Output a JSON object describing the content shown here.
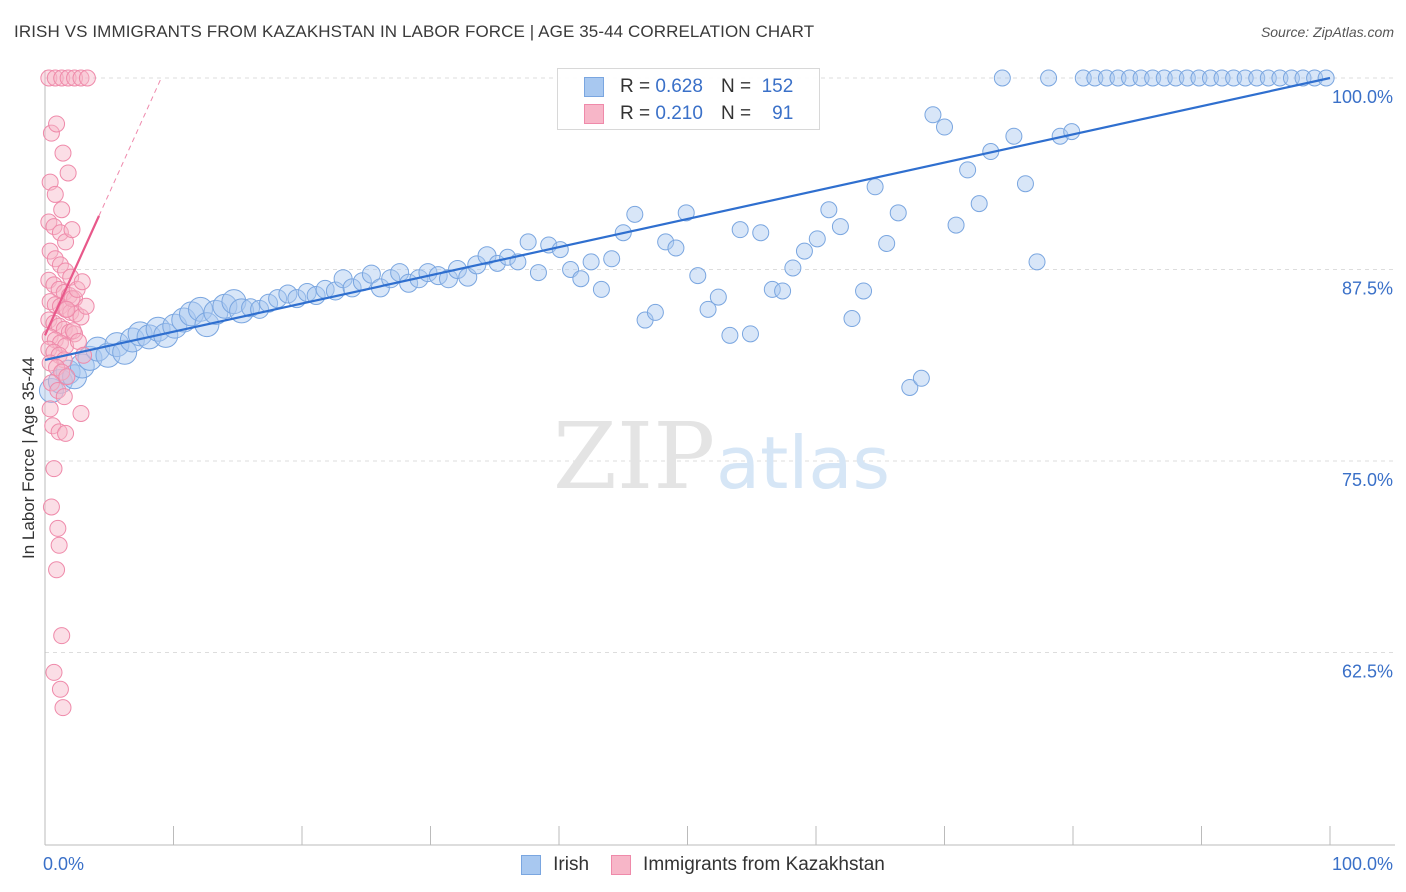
{
  "title": "IRISH VS IMMIGRANTS FROM KAZAKHSTAN IN LABOR FORCE | AGE 35-44 CORRELATION CHART",
  "source": "Source: ZipAtlas.com",
  "watermark": {
    "zip": "ZIP",
    "atlas": "atlas"
  },
  "legend": {
    "irish": {
      "r_label": "R =",
      "r_value": "0.628",
      "n_label": "N =",
      "n_value": "152"
    },
    "kazakhstan": {
      "r_label": "R =",
      "r_value": "0.210",
      "n_label": "N =",
      "n_value": "91"
    }
  },
  "colors": {
    "irish_fill": "#a8c8f0",
    "irish_stroke": "#7aa6e0",
    "irish_line": "#2f6fcf",
    "kaz_fill": "#f7b6c8",
    "kaz_stroke": "#ef8aaa",
    "kaz_line": "#e8588a",
    "axis_label": "#3a70c8",
    "grid": "#dddddd"
  },
  "chart_data": {
    "type": "scatter",
    "title": "IRISH VS IMMIGRANTS FROM KAZAKHSTAN IN LABOR FORCE | AGE 35-44 CORRELATION CHART",
    "xlabel": "",
    "ylabel": "In Labor Force | Age 35-44",
    "xlim": [
      0,
      100
    ],
    "ylim": [
      50,
      101
    ],
    "x_tick_labels": [
      "0.0%",
      "100.0%"
    ],
    "y_ticks": [
      62.5,
      75.0,
      87.5,
      100.0
    ],
    "y_tick_labels": [
      "62.5%",
      "75.0%",
      "87.5%",
      "100.0%"
    ],
    "grid": true,
    "legend": [
      "Irish",
      "Immigrants from Kazakhstan"
    ],
    "series": [
      {
        "name": "Irish",
        "trend": {
          "x0": 0,
          "y0": 81.6,
          "x1": 100,
          "y1": 100.0
        },
        "points": [
          [
            0.5,
            79.6
          ],
          [
            1.2,
            80.2
          ],
          [
            1.8,
            80.8
          ],
          [
            2.3,
            80.5
          ],
          [
            2.9,
            81.2
          ],
          [
            3.5,
            81.7
          ],
          [
            4.1,
            82.3
          ],
          [
            4.9,
            81.9
          ],
          [
            5.6,
            82.6
          ],
          [
            6.2,
            82.1
          ],
          [
            6.8,
            82.9
          ],
          [
            7.4,
            83.3
          ],
          [
            8.1,
            83.1
          ],
          [
            8.8,
            83.6
          ],
          [
            9.4,
            83.2
          ],
          [
            10.1,
            83.8
          ],
          [
            10.8,
            84.2
          ],
          [
            11.4,
            84.6
          ],
          [
            12.1,
            84.9
          ],
          [
            12.6,
            83.9
          ],
          [
            13.3,
            84.7
          ],
          [
            14.0,
            85.1
          ],
          [
            14.7,
            85.4
          ],
          [
            15.3,
            84.8
          ],
          [
            16.0,
            85.0
          ],
          [
            16.7,
            84.9
          ],
          [
            17.4,
            85.3
          ],
          [
            18.1,
            85.6
          ],
          [
            18.9,
            85.9
          ],
          [
            19.6,
            85.6
          ],
          [
            20.4,
            86.0
          ],
          [
            21.1,
            85.8
          ],
          [
            21.8,
            86.2
          ],
          [
            22.6,
            86.1
          ],
          [
            23.2,
            86.9
          ],
          [
            23.9,
            86.3
          ],
          [
            24.7,
            86.7
          ],
          [
            25.4,
            87.2
          ],
          [
            26.1,
            86.3
          ],
          [
            26.9,
            86.9
          ],
          [
            27.6,
            87.3
          ],
          [
            28.3,
            86.6
          ],
          [
            29.1,
            86.9
          ],
          [
            29.8,
            87.3
          ],
          [
            30.6,
            87.1
          ],
          [
            31.4,
            86.9
          ],
          [
            32.1,
            87.5
          ],
          [
            32.9,
            87.0
          ],
          [
            33.6,
            87.8
          ],
          [
            34.4,
            88.4
          ],
          [
            35.2,
            87.9
          ],
          [
            36.0,
            88.3
          ],
          [
            36.8,
            88.0
          ],
          [
            37.6,
            89.3
          ],
          [
            38.4,
            87.3
          ],
          [
            39.2,
            89.1
          ],
          [
            40.1,
            88.8
          ],
          [
            40.9,
            87.5
          ],
          [
            41.7,
            86.9
          ],
          [
            42.5,
            88.0
          ],
          [
            43.3,
            86.2
          ],
          [
            44.1,
            88.2
          ],
          [
            45.0,
            89.9
          ],
          [
            45.9,
            91.1
          ],
          [
            46.7,
            84.2
          ],
          [
            47.5,
            84.7
          ],
          [
            48.3,
            89.3
          ],
          [
            49.1,
            88.9
          ],
          [
            49.9,
            91.2
          ],
          [
            50.8,
            87.1
          ],
          [
            51.6,
            84.9
          ],
          [
            52.4,
            85.7
          ],
          [
            53.3,
            83.2
          ],
          [
            54.1,
            90.1
          ],
          [
            54.9,
            83.3
          ],
          [
            55.7,
            89.9
          ],
          [
            56.6,
            86.2
          ],
          [
            57.4,
            86.1
          ],
          [
            58.2,
            87.6
          ],
          [
            59.1,
            88.7
          ],
          [
            60.1,
            89.5
          ],
          [
            61.0,
            91.4
          ],
          [
            61.9,
            90.3
          ],
          [
            62.8,
            84.3
          ],
          [
            63.7,
            86.1
          ],
          [
            64.6,
            92.9
          ],
          [
            65.5,
            89.2
          ],
          [
            66.4,
            91.2
          ],
          [
            67.3,
            79.8
          ],
          [
            68.2,
            80.4
          ],
          [
            69.1,
            97.6
          ],
          [
            70.0,
            96.8
          ],
          [
            70.9,
            90.4
          ],
          [
            71.8,
            94.0
          ],
          [
            72.7,
            91.8
          ],
          [
            73.6,
            95.2
          ],
          [
            74.5,
            100.0
          ],
          [
            75.4,
            96.2
          ],
          [
            76.3,
            93.1
          ],
          [
            77.2,
            88.0
          ],
          [
            78.1,
            100.0
          ],
          [
            79.0,
            96.2
          ],
          [
            79.9,
            96.5
          ],
          [
            80.8,
            100.0
          ],
          [
            81.7,
            100.0
          ],
          [
            82.6,
            100.0
          ],
          [
            83.5,
            100.0
          ],
          [
            84.4,
            100.0
          ],
          [
            85.3,
            100.0
          ],
          [
            86.2,
            100.0
          ],
          [
            87.1,
            100.0
          ],
          [
            88.0,
            100.0
          ],
          [
            88.9,
            100.0
          ],
          [
            89.8,
            100.0
          ],
          [
            90.7,
            100.0
          ],
          [
            91.6,
            100.0
          ],
          [
            92.5,
            100.0
          ],
          [
            93.4,
            100.0
          ],
          [
            94.3,
            100.0
          ],
          [
            95.2,
            100.0
          ],
          [
            96.1,
            100.0
          ],
          [
            97.0,
            100.0
          ],
          [
            97.9,
            100.0
          ],
          [
            98.8,
            100.0
          ],
          [
            99.7,
            100.0
          ]
        ]
      },
      {
        "name": "Immigrants from Kazakhstan",
        "trend": {
          "x0": 0,
          "y0": 83.2,
          "x1": 4.2,
          "y1": 91.0
        },
        "points": [
          [
            0.3,
            100.0
          ],
          [
            0.8,
            100.0
          ],
          [
            1.3,
            100.0
          ],
          [
            1.8,
            100.0
          ],
          [
            2.3,
            100.0
          ],
          [
            2.8,
            100.0
          ],
          [
            3.3,
            100.0
          ],
          [
            0.5,
            96.4
          ],
          [
            0.9,
            97.0
          ],
          [
            1.4,
            95.1
          ],
          [
            0.4,
            93.2
          ],
          [
            0.8,
            92.4
          ],
          [
            1.3,
            91.4
          ],
          [
            1.8,
            93.8
          ],
          [
            0.3,
            90.6
          ],
          [
            0.7,
            90.3
          ],
          [
            1.2,
            89.9
          ],
          [
            1.6,
            89.3
          ],
          [
            2.1,
            90.1
          ],
          [
            0.4,
            88.7
          ],
          [
            0.8,
            88.2
          ],
          [
            1.2,
            87.8
          ],
          [
            1.6,
            87.4
          ],
          [
            2.0,
            87.0
          ],
          [
            0.3,
            86.8
          ],
          [
            0.7,
            86.5
          ],
          [
            1.1,
            86.2
          ],
          [
            1.5,
            86.0
          ],
          [
            1.9,
            85.8
          ],
          [
            2.3,
            85.6
          ],
          [
            0.4,
            85.4
          ],
          [
            0.8,
            85.2
          ],
          [
            1.2,
            85.1
          ],
          [
            1.6,
            84.9
          ],
          [
            2.0,
            84.7
          ],
          [
            2.4,
            84.6
          ],
          [
            2.8,
            84.4
          ],
          [
            0.3,
            84.2
          ],
          [
            0.7,
            84.0
          ],
          [
            1.1,
            83.8
          ],
          [
            1.5,
            83.6
          ],
          [
            1.9,
            83.4
          ],
          [
            2.3,
            83.3
          ],
          [
            0.4,
            83.1
          ],
          [
            0.8,
            82.9
          ],
          [
            1.2,
            82.7
          ],
          [
            1.6,
            82.5
          ],
          [
            0.3,
            82.3
          ],
          [
            0.7,
            82.1
          ],
          [
            1.1,
            81.9
          ],
          [
            1.5,
            81.6
          ],
          [
            0.4,
            81.4
          ],
          [
            0.9,
            81.1
          ],
          [
            1.3,
            80.8
          ],
          [
            1.7,
            80.5
          ],
          [
            0.5,
            80.1
          ],
          [
            1.0,
            79.6
          ],
          [
            1.5,
            79.2
          ],
          [
            0.4,
            78.4
          ],
          [
            2.8,
            78.1
          ],
          [
            0.6,
            77.3
          ],
          [
            1.1,
            76.9
          ],
          [
            1.6,
            76.8
          ],
          [
            0.7,
            74.5
          ],
          [
            0.5,
            72.0
          ],
          [
            1.0,
            70.6
          ],
          [
            1.1,
            69.5
          ],
          [
            0.9,
            67.9
          ],
          [
            1.3,
            63.6
          ],
          [
            0.7,
            61.2
          ],
          [
            1.2,
            60.1
          ],
          [
            1.4,
            58.9
          ],
          [
            2.1,
            85.6
          ],
          [
            2.5,
            86.2
          ],
          [
            2.9,
            86.7
          ],
          [
            3.2,
            85.1
          ],
          [
            1.7,
            84.9
          ],
          [
            2.2,
            83.5
          ],
          [
            2.6,
            82.8
          ],
          [
            3.0,
            81.9
          ]
        ]
      }
    ]
  },
  "bottom_legend": {
    "irish": "Irish",
    "kazakhstan": "Immigrants from Kazakhstan"
  }
}
